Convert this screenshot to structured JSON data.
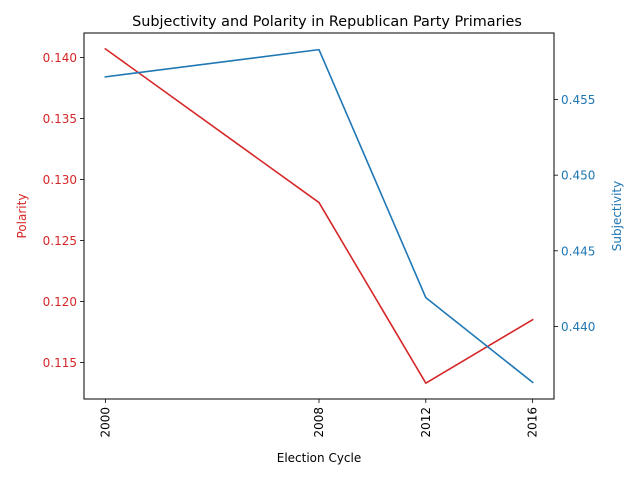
{
  "chart_data": {
    "type": "line",
    "title": "Subjectivity and Polarity in Republican Party Primaries",
    "xlabel": "Election Cycle",
    "x": [
      2000,
      2008,
      2012,
      2016
    ],
    "x_ticks": [
      "2000",
      "2008",
      "2012",
      "2016"
    ],
    "xlim": [
      1999.2,
      2016.8
    ],
    "series": [
      {
        "name": "Polarity",
        "axis": "left",
        "color": "#d62728",
        "values": [
          0.1407,
          0.1281,
          0.1133,
          0.1185
        ]
      },
      {
        "name": "Subjectivity",
        "axis": "right",
        "color": "#1f77b4",
        "values": [
          0.4565,
          0.4583,
          0.4419,
          0.4363
        ]
      }
    ],
    "left_axis": {
      "label": "Polarity",
      "color": "#d62728",
      "ylim": [
        0.112,
        0.142
      ],
      "ticks": [
        0.115,
        0.12,
        0.125,
        0.13,
        0.135,
        0.14
      ],
      "tick_labels": [
        "0.115",
        "0.120",
        "0.125",
        "0.130",
        "0.135",
        "0.140"
      ]
    },
    "right_axis": {
      "label": "Subjectivity",
      "color": "#1f77b4",
      "ylim": [
        0.4352,
        0.4594
      ],
      "ticks": [
        0.44,
        0.445,
        0.45,
        0.455
      ],
      "tick_labels": [
        "0.440",
        "0.445",
        "0.450",
        "0.455"
      ]
    },
    "grid": false,
    "legend": "none"
  }
}
